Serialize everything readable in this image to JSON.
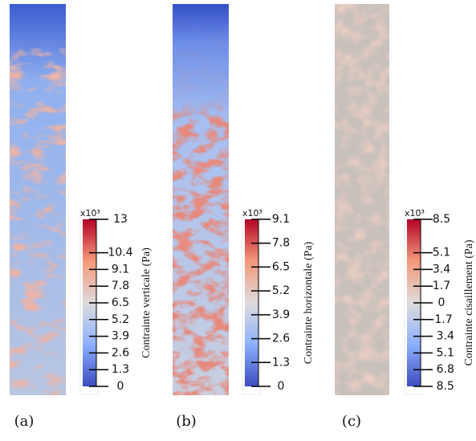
{
  "panels": [
    {
      "label": "(a)",
      "multiplier": "x10³",
      "colorbar_title": "Contrainte verticale (Pa)",
      "range": [
        0,
        13
      ],
      "ticks": [
        13,
        10.4,
        9.1,
        7.8,
        6.5,
        5.2,
        3.9,
        2.6,
        1.3,
        0
      ]
    },
    {
      "label": "(b)",
      "multiplier": "x10³",
      "colorbar_title": "Contrainte horizontale (Pa)",
      "range": [
        0,
        9.1
      ],
      "ticks": [
        9.1,
        7.8,
        6.5,
        5.2,
        3.9,
        2.6,
        1.3,
        0
      ]
    },
    {
      "label": "(c)",
      "multiplier": "x10³",
      "colorbar_title": "Contrainte cisaillement (Pa)",
      "range": [
        -8.5,
        8.5
      ],
      "ticks": [
        8.5,
        5.1,
        3.4,
        1.7,
        0,
        -1.7,
        {
          "value": -3.4,
          "label": "- 3.4"
        },
        {
          "value": -5.1,
          "label": "- 5.1"
        },
        {
          "value": -6.8,
          "label": "- 6.8"
        },
        {
          "value": -8.5,
          "label": "- 8.5"
        }
      ]
    }
  ]
}
